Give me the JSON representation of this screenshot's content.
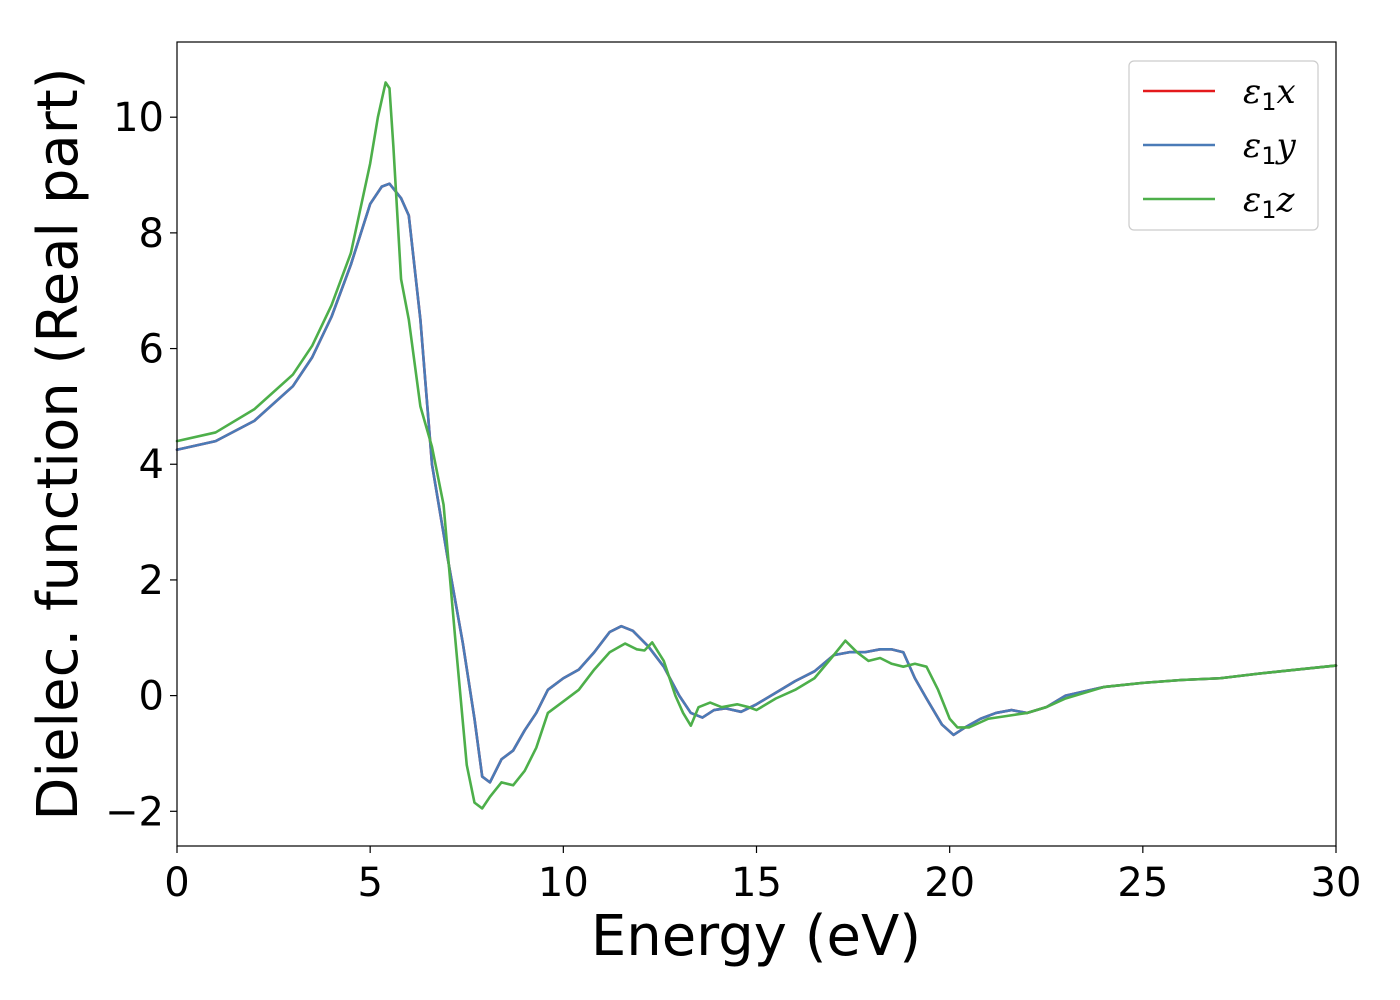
{
  "chart_data": {
    "type": "line",
    "xlabel": "Energy (eV)",
    "ylabel": "Dielec. function (Real part)",
    "xlim": [
      0,
      30
    ],
    "ylim": [
      -2.6,
      11.3
    ],
    "x_ticks": [
      0,
      5,
      10,
      15,
      20,
      25,
      30
    ],
    "y_ticks": [
      -2,
      0,
      2,
      4,
      6,
      8,
      10
    ],
    "y_tick_labels": [
      "−2",
      "0",
      "2",
      "4",
      "6",
      "8",
      "10"
    ],
    "grid": false,
    "legend_position": "top-right",
    "series": [
      {
        "name": "ε₁x",
        "legend_base": "ε",
        "legend_sub": "1",
        "legend_var": "x",
        "color": "#e41a1c",
        "x": [
          0,
          1,
          2,
          3,
          3.5,
          4,
          4.5,
          5,
          5.3,
          5.5,
          5.8,
          6.0,
          6.3,
          6.6,
          7.0,
          7.4,
          7.7,
          7.9,
          8.1,
          8.4,
          8.7,
          9.0,
          9.3,
          9.6,
          10.0,
          10.4,
          10.8,
          11.2,
          11.5,
          11.8,
          12.2,
          12.6,
          13.0,
          13.3,
          13.6,
          13.9,
          14.2,
          14.6,
          15.0,
          15.5,
          16.0,
          16.5,
          17.0,
          17.4,
          17.8,
          18.2,
          18.5,
          18.8,
          19.1,
          19.4,
          19.8,
          20.1,
          20.4,
          20.8,
          21.2,
          21.6,
          22.0,
          22.5,
          23.0,
          24.0,
          25.0,
          26.0,
          27.0,
          28.0,
          29.0,
          30.0
        ],
        "y": [
          4.25,
          4.4,
          4.75,
          5.35,
          5.85,
          6.55,
          7.45,
          8.5,
          8.8,
          8.85,
          8.6,
          8.3,
          6.5,
          4.0,
          2.4,
          0.9,
          -0.4,
          -1.4,
          -1.5,
          -1.1,
          -0.95,
          -0.6,
          -0.3,
          0.1,
          0.3,
          0.45,
          0.75,
          1.1,
          1.2,
          1.12,
          0.85,
          0.5,
          0.0,
          -0.3,
          -0.38,
          -0.25,
          -0.22,
          -0.28,
          -0.15,
          0.05,
          0.25,
          0.42,
          0.7,
          0.75,
          0.75,
          0.8,
          0.8,
          0.75,
          0.3,
          -0.05,
          -0.5,
          -0.68,
          -0.55,
          -0.4,
          -0.3,
          -0.25,
          -0.3,
          -0.2,
          0.0,
          0.15,
          0.22,
          0.27,
          0.3,
          0.38,
          0.45,
          0.52
        ]
      },
      {
        "name": "ε₁y",
        "legend_base": "ε",
        "legend_sub": "1",
        "legend_var": "y",
        "color": "#4a7bb7",
        "x": [
          0,
          1,
          2,
          3,
          3.5,
          4,
          4.5,
          5,
          5.3,
          5.5,
          5.8,
          6.0,
          6.3,
          6.6,
          7.0,
          7.4,
          7.7,
          7.9,
          8.1,
          8.4,
          8.7,
          9.0,
          9.3,
          9.6,
          10.0,
          10.4,
          10.8,
          11.2,
          11.5,
          11.8,
          12.2,
          12.6,
          13.0,
          13.3,
          13.6,
          13.9,
          14.2,
          14.6,
          15.0,
          15.5,
          16.0,
          16.5,
          17.0,
          17.4,
          17.8,
          18.2,
          18.5,
          18.8,
          19.1,
          19.4,
          19.8,
          20.1,
          20.4,
          20.8,
          21.2,
          21.6,
          22.0,
          22.5,
          23.0,
          24.0,
          25.0,
          26.0,
          27.0,
          28.0,
          29.0,
          30.0
        ],
        "y": [
          4.25,
          4.4,
          4.75,
          5.35,
          5.85,
          6.55,
          7.45,
          8.5,
          8.8,
          8.85,
          8.6,
          8.3,
          6.5,
          4.0,
          2.4,
          0.9,
          -0.4,
          -1.4,
          -1.5,
          -1.1,
          -0.95,
          -0.6,
          -0.3,
          0.1,
          0.3,
          0.45,
          0.75,
          1.1,
          1.2,
          1.12,
          0.85,
          0.5,
          0.0,
          -0.3,
          -0.38,
          -0.25,
          -0.22,
          -0.28,
          -0.15,
          0.05,
          0.25,
          0.42,
          0.7,
          0.75,
          0.75,
          0.8,
          0.8,
          0.75,
          0.3,
          -0.05,
          -0.5,
          -0.68,
          -0.55,
          -0.4,
          -0.3,
          -0.25,
          -0.3,
          -0.2,
          0.0,
          0.15,
          0.22,
          0.27,
          0.3,
          0.38,
          0.45,
          0.52
        ]
      },
      {
        "name": "ε₁z",
        "legend_base": "ε",
        "legend_sub": "1",
        "legend_var": "z",
        "color": "#4daf4a",
        "x": [
          0,
          1,
          2,
          3,
          3.5,
          4,
          4.5,
          5,
          5.2,
          5.4,
          5.5,
          5.6,
          5.8,
          6.0,
          6.3,
          6.6,
          6.9,
          7.2,
          7.5,
          7.7,
          7.9,
          8.1,
          8.4,
          8.7,
          9.0,
          9.3,
          9.6,
          10.0,
          10.4,
          10.8,
          11.2,
          11.6,
          11.9,
          12.1,
          12.3,
          12.6,
          12.9,
          13.1,
          13.3,
          13.5,
          13.8,
          14.1,
          14.5,
          14.8,
          15.0,
          15.5,
          16.0,
          16.5,
          17.0,
          17.3,
          17.6,
          17.9,
          18.2,
          18.5,
          18.8,
          19.1,
          19.4,
          19.7,
          20.0,
          20.2,
          20.5,
          21.0,
          21.5,
          22.0,
          22.5,
          23.0,
          24.0,
          25.0,
          26.0,
          27.0,
          28.0,
          29.0,
          30.0
        ],
        "y": [
          4.4,
          4.55,
          4.95,
          5.55,
          6.05,
          6.75,
          7.65,
          9.2,
          10.0,
          10.6,
          10.5,
          9.5,
          7.2,
          6.5,
          5.0,
          4.3,
          3.3,
          1.0,
          -1.2,
          -1.85,
          -1.95,
          -1.75,
          -1.5,
          -1.55,
          -1.3,
          -0.9,
          -0.3,
          -0.1,
          0.1,
          0.45,
          0.75,
          0.9,
          0.8,
          0.78,
          0.92,
          0.6,
          0.0,
          -0.3,
          -0.52,
          -0.2,
          -0.12,
          -0.2,
          -0.15,
          -0.2,
          -0.25,
          -0.05,
          0.1,
          0.3,
          0.7,
          0.95,
          0.75,
          0.6,
          0.65,
          0.55,
          0.5,
          0.55,
          0.5,
          0.1,
          -0.4,
          -0.55,
          -0.55,
          -0.4,
          -0.35,
          -0.3,
          -0.2,
          -0.05,
          0.15,
          0.22,
          0.27,
          0.3,
          0.38,
          0.45,
          0.52
        ]
      }
    ]
  }
}
